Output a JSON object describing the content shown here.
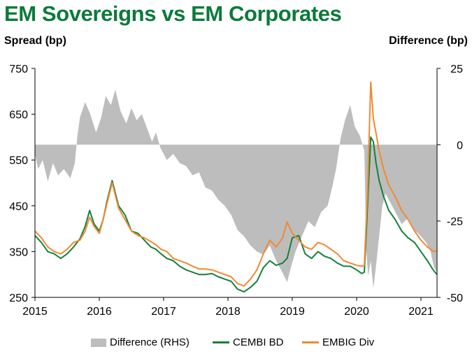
{
  "title": "EM Sovereigns vs EM Corporates",
  "chart_data": {
    "type": "line",
    "title": "EM Sovereigns vs EM Corporates",
    "ylabel": "Spread (bp)",
    "y2label": "Difference (bp)",
    "ylim": [
      250,
      750
    ],
    "y2lim": [
      -50,
      25
    ],
    "yticks": [
      "750",
      "650",
      "550",
      "450",
      "350",
      "250"
    ],
    "y2ticks": [
      "25",
      "0",
      "-25",
      "-50"
    ],
    "xlim": [
      2015.0,
      2021.25
    ],
    "xticks": [
      "2015",
      "2016",
      "2017",
      "2018",
      "2019",
      "2020",
      "2021"
    ],
    "grid": false,
    "legend_position": "bottom",
    "colors": {
      "difference": "#bdbdbd",
      "cembi": "#15803d",
      "embig": "#ef8a32",
      "title": "#0b7a3b"
    },
    "series": [
      {
        "name": "Difference (RHS)",
        "type": "area",
        "axis": "right",
        "x": [
          2015.0,
          2015.05,
          2015.12,
          2015.2,
          2015.28,
          2015.36,
          2015.45,
          2015.55,
          2015.62,
          2015.66,
          2015.7,
          2015.78,
          2015.86,
          2015.95,
          2016.03,
          2016.1,
          2016.18,
          2016.25,
          2016.33,
          2016.42,
          2016.5,
          2016.58,
          2016.66,
          2016.75,
          2016.82,
          2016.88,
          2016.95,
          2017.05,
          2017.15,
          2017.25,
          2017.35,
          2017.45,
          2017.55,
          2017.65,
          2017.75,
          2017.85,
          2017.95,
          2018.05,
          2018.15,
          2018.25,
          2018.35,
          2018.45,
          2018.55,
          2018.65,
          2018.75,
          2018.85,
          2018.92,
          2018.98,
          2019.05,
          2019.15,
          2019.25,
          2019.35,
          2019.45,
          2019.55,
          2019.62,
          2019.68,
          2019.75,
          2019.82,
          2019.9,
          2019.97,
          2020.05,
          2020.12,
          2020.15,
          2020.18,
          2020.22,
          2020.26,
          2020.3,
          2020.35,
          2020.4,
          2020.45,
          2020.5,
          2020.6,
          2020.7,
          2020.8,
          2020.9,
          2021.0,
          2021.08,
          2021.15,
          2021.2,
          2021.25
        ],
        "values": [
          -3,
          -8,
          -5,
          -12,
          -6,
          -10,
          -8,
          -11,
          -6,
          3,
          9,
          14,
          10,
          4,
          9,
          16,
          13,
          18,
          11,
          7,
          12,
          8,
          10,
          5,
          1,
          4,
          -1,
          -5,
          -3,
          -6,
          -7,
          -10,
          -9,
          -14,
          -15,
          -18,
          -20,
          -23,
          -28,
          -30,
          -33,
          -35,
          -36,
          -33,
          -38,
          -42,
          -45,
          -40,
          -35,
          -30,
          -25,
          -27,
          -22,
          -20,
          -14,
          -8,
          2,
          8,
          13,
          6,
          3,
          -2,
          -35,
          -43,
          -38,
          -47,
          -40,
          -30,
          -20,
          -16,
          -18,
          -22,
          -26,
          -24,
          -28,
          -30,
          -32,
          -35,
          -40,
          -42
        ]
      },
      {
        "name": "CEMBI BD",
        "type": "line",
        "axis": "left",
        "x": [
          2015.0,
          2015.1,
          2015.2,
          2015.3,
          2015.4,
          2015.5,
          2015.6,
          2015.7,
          2015.78,
          2015.85,
          2015.92,
          2016.0,
          2016.06,
          2016.12,
          2016.2,
          2016.3,
          2016.4,
          2016.5,
          2016.6,
          2016.7,
          2016.8,
          2016.88,
          2016.96,
          2017.05,
          2017.15,
          2017.25,
          2017.35,
          2017.45,
          2017.55,
          2017.65,
          2017.75,
          2017.85,
          2017.95,
          2018.05,
          2018.15,
          2018.25,
          2018.35,
          2018.45,
          2018.55,
          2018.65,
          2018.75,
          2018.85,
          2018.92,
          2019.0,
          2019.1,
          2019.2,
          2019.3,
          2019.4,
          2019.5,
          2019.6,
          2019.7,
          2019.8,
          2019.9,
          2020.0,
          2020.08,
          2020.12,
          2020.17,
          2020.22,
          2020.26,
          2020.3,
          2020.35,
          2020.42,
          2020.5,
          2020.6,
          2020.7,
          2020.8,
          2020.9,
          2021.0,
          2021.1,
          2021.2,
          2021.25
        ],
        "values": [
          385,
          370,
          350,
          345,
          335,
          345,
          360,
          378,
          405,
          440,
          410,
          395,
          420,
          460,
          505,
          450,
          430,
          395,
          390,
          375,
          360,
          355,
          345,
          335,
          330,
          318,
          310,
          305,
          300,
          300,
          302,
          295,
          290,
          285,
          268,
          262,
          272,
          285,
          315,
          330,
          320,
          325,
          335,
          380,
          385,
          345,
          335,
          350,
          340,
          335,
          325,
          318,
          318,
          310,
          302,
          305,
          450,
          600,
          590,
          545,
          505,
          470,
          440,
          420,
          395,
          380,
          370,
          350,
          330,
          308,
          300
        ]
      },
      {
        "name": "EMBIG Div",
        "type": "line",
        "axis": "left",
        "x": [
          2015.0,
          2015.1,
          2015.2,
          2015.3,
          2015.4,
          2015.5,
          2015.6,
          2015.7,
          2015.78,
          2015.85,
          2015.92,
          2016.0,
          2016.06,
          2016.12,
          2016.2,
          2016.3,
          2016.4,
          2016.5,
          2016.6,
          2016.7,
          2016.8,
          2016.88,
          2016.96,
          2017.05,
          2017.15,
          2017.25,
          2017.35,
          2017.45,
          2017.55,
          2017.65,
          2017.75,
          2017.85,
          2017.95,
          2018.05,
          2018.15,
          2018.25,
          2018.35,
          2018.45,
          2018.55,
          2018.65,
          2018.75,
          2018.85,
          2018.92,
          2019.0,
          2019.1,
          2019.2,
          2019.3,
          2019.4,
          2019.5,
          2019.6,
          2019.7,
          2019.8,
          2019.9,
          2020.0,
          2020.08,
          2020.12,
          2020.17,
          2020.22,
          2020.26,
          2020.3,
          2020.35,
          2020.42,
          2020.5,
          2020.6,
          2020.7,
          2020.8,
          2020.9,
          2021.0,
          2021.1,
          2021.2,
          2021.25
        ],
        "values": [
          395,
          380,
          360,
          350,
          345,
          355,
          370,
          375,
          395,
          425,
          405,
          390,
          420,
          455,
          500,
          445,
          420,
          395,
          385,
          380,
          372,
          365,
          355,
          350,
          335,
          330,
          325,
          318,
          312,
          312,
          310,
          305,
          300,
          295,
          280,
          275,
          290,
          310,
          345,
          375,
          360,
          380,
          415,
          390,
          375,
          360,
          355,
          370,
          365,
          355,
          345,
          330,
          325,
          320,
          318,
          320,
          480,
          720,
          640,
          610,
          570,
          530,
          495,
          470,
          440,
          420,
          395,
          375,
          360,
          350,
          352
        ]
      }
    ]
  },
  "legend": [
    {
      "label": "Difference (RHS)"
    },
    {
      "label": "CEMBI BD"
    },
    {
      "label": "EMBIG Div"
    }
  ]
}
